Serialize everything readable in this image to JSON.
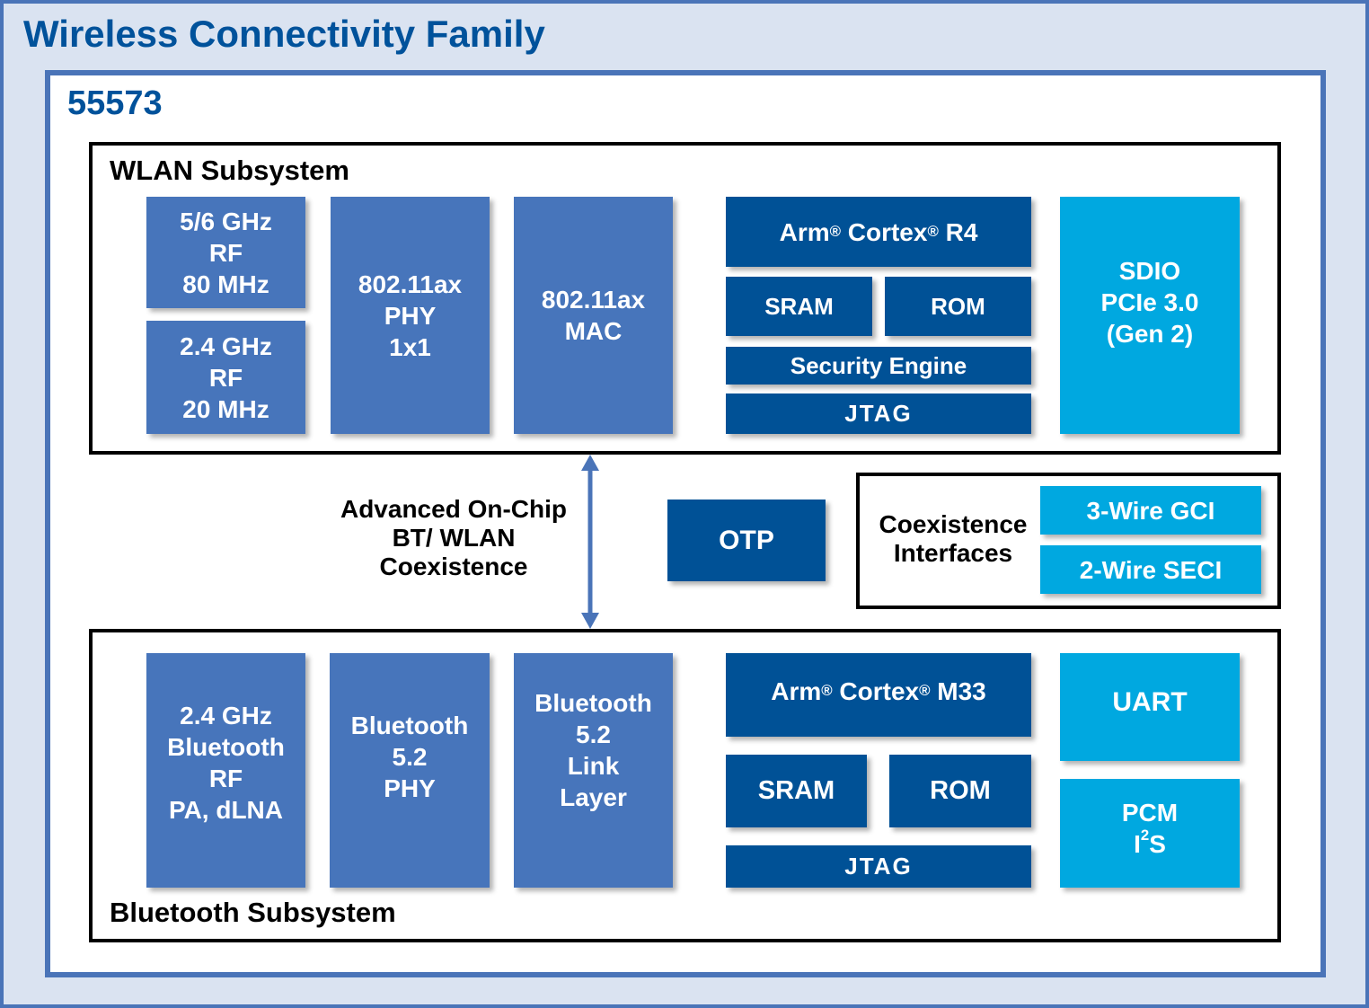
{
  "title": "Wireless Connectivity Family",
  "chip": "55573",
  "colors": {
    "frame": "#4a74b8",
    "title": "#00529b",
    "block_mid": "#4775bb",
    "block_dark": "#005196",
    "block_cyan": "#00a8e0",
    "background": "#dae3f1"
  },
  "wlan": {
    "label": "WLAN Subsystem",
    "rf5": "5/6 GHz\nRF\n80 MHz",
    "rf24": "2.4 GHz\nRF\n20 MHz",
    "phy": "802.11ax\nPHY\n1x1",
    "mac": "802.11ax\nMAC",
    "cpu_a": "Arm",
    "cpu_b": " Cortex",
    "cpu_c": " R4",
    "reg": "®",
    "sram": "SRAM",
    "rom": "ROM",
    "security": "Security Engine",
    "jtag": "JTAG",
    "host": "SDIO\nPCIe 3.0\n(Gen 2)"
  },
  "middle": {
    "coex_text": "Advanced On-Chip\nBT/ WLAN\nCoexistence",
    "otp": "OTP",
    "coex_if": "Coexistence\nInterfaces",
    "gci": "3-Wire GCI",
    "seci": "2-Wire SECI"
  },
  "bt": {
    "label": "Bluetooth Subsystem",
    "rf": "2.4 GHz\nBluetooth\nRF\nPA, dLNA",
    "phy": "Bluetooth\n5.2\nPHY",
    "link": "Bluetooth\n5.2\nLink\nLayer",
    "cpu_a": "Arm",
    "cpu_b": " Cortex",
    "cpu_c": " M33",
    "reg": "®",
    "sram": "SRAM",
    "rom": "ROM",
    "jtag": "JTAG",
    "uart": "UART",
    "pcm": "PCM",
    "i2s_a": "I",
    "i2s_sup": "2",
    "i2s_b": "S"
  }
}
